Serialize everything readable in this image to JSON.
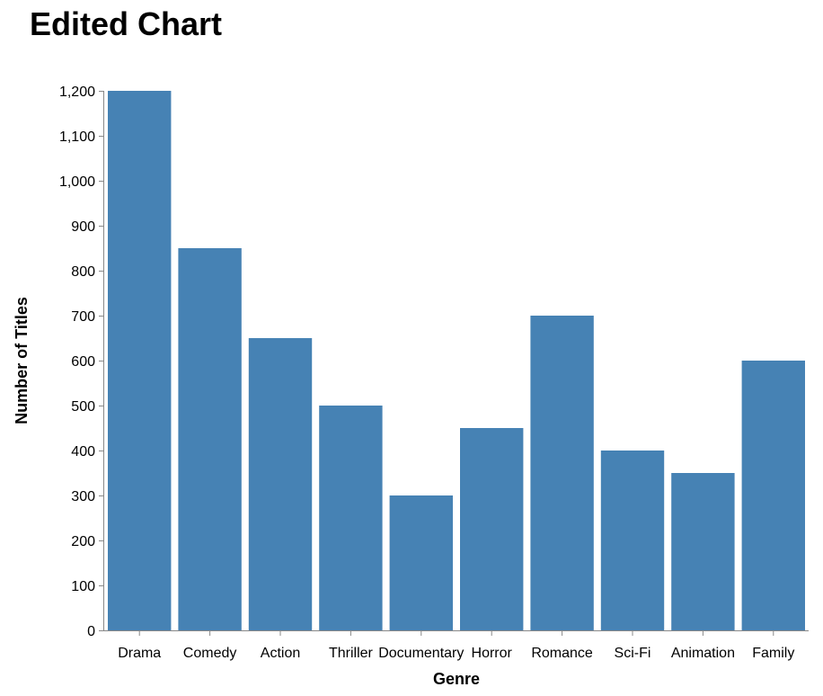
{
  "chart_data": {
    "type": "bar",
    "title": "Edited Chart",
    "xlabel": "Genre",
    "ylabel": "Number of Titles",
    "categories": [
      "Drama",
      "Comedy",
      "Action",
      "Thriller",
      "Documentary",
      "Horror",
      "Romance",
      "Sci-Fi",
      "Animation",
      "Family"
    ],
    "values": [
      1200,
      850,
      650,
      500,
      300,
      450,
      700,
      400,
      350,
      600
    ],
    "ylim": [
      0,
      1200
    ],
    "yticks": [
      0,
      100,
      200,
      300,
      400,
      500,
      600,
      700,
      800,
      900,
      1000,
      1100,
      1200
    ],
    "ytick_labels": [
      "0",
      "100",
      "200",
      "300",
      "400",
      "500",
      "600",
      "700",
      "800",
      "900",
      "1,000",
      "1,100",
      "1,200"
    ],
    "grid": false,
    "bar_color": "#4682b4",
    "axis_color": "#888888"
  }
}
